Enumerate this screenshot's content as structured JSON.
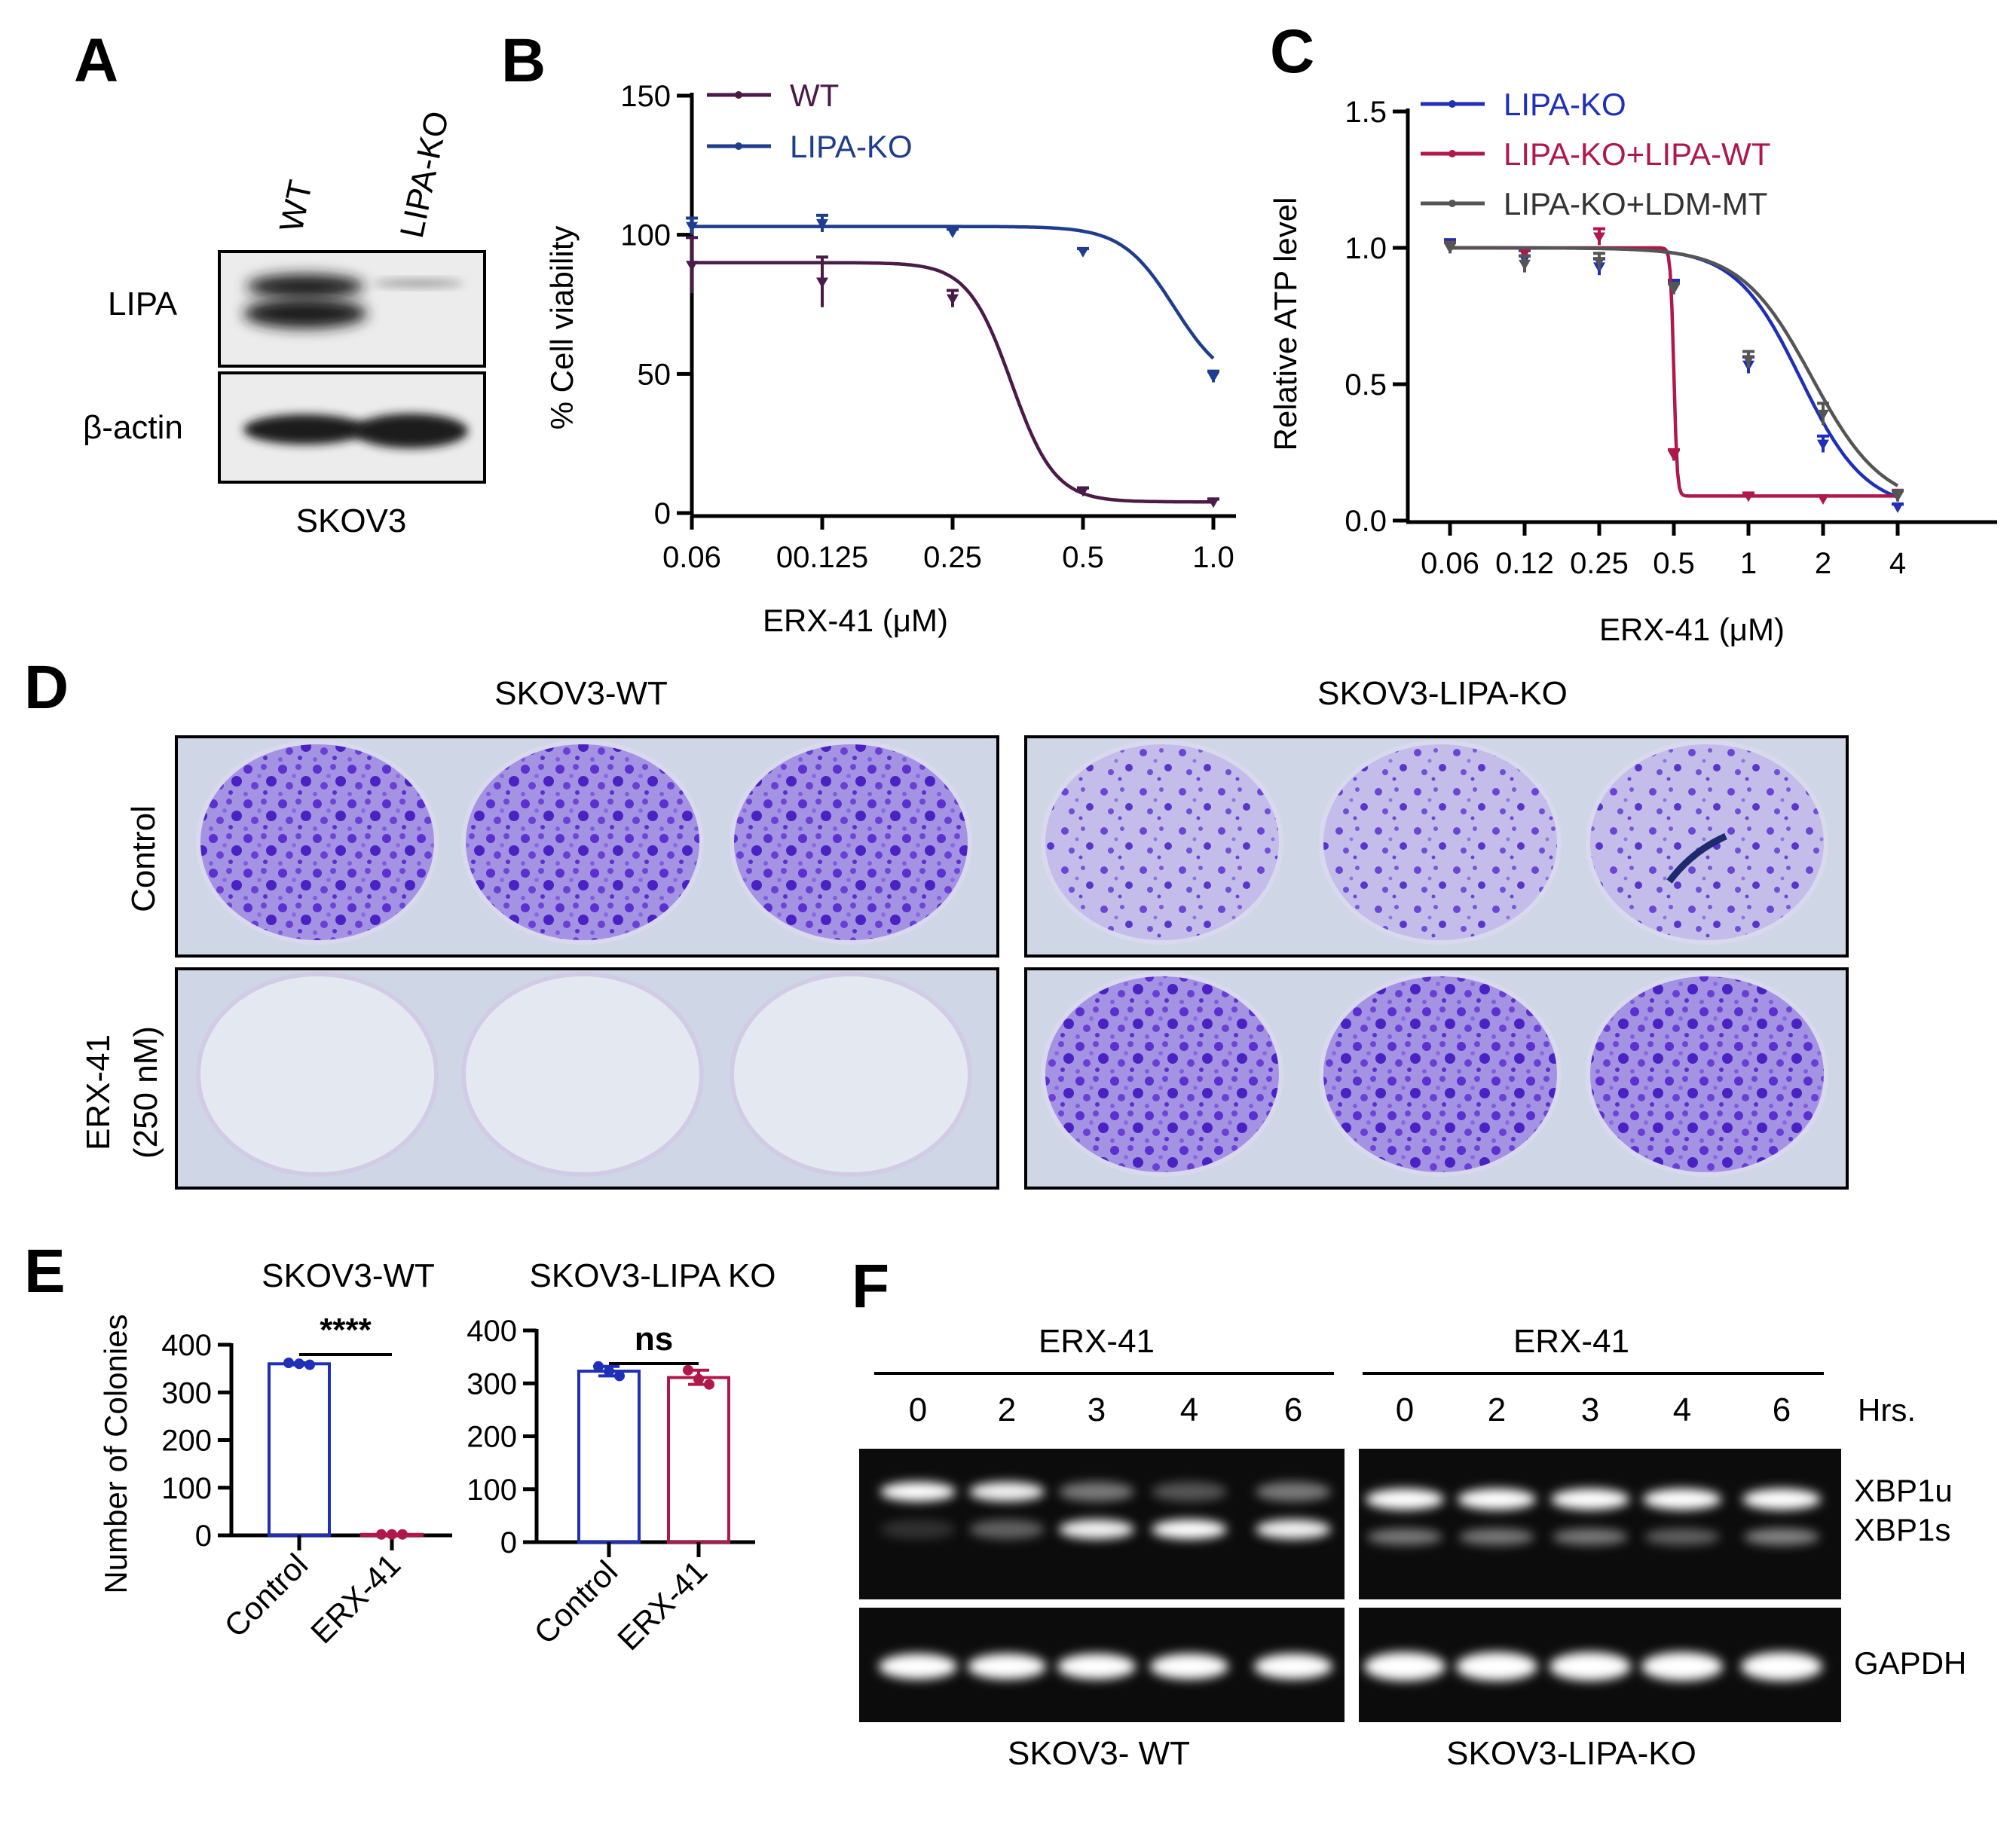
{
  "panels": {
    "A": {
      "label": "A",
      "lanes": [
        "WT",
        "LIPA-KO"
      ],
      "rows": [
        "LIPA",
        "β-actin"
      ],
      "cell_line": "SKOV3"
    },
    "D": {
      "label": "D",
      "columns": [
        "SKOV3-WT",
        "SKOV3-LIPA-KO"
      ],
      "rows": [
        "Control",
        "ERX-41",
        "(250 nM)"
      ]
    },
    "F": {
      "label": "F",
      "group_label_left": "ERX-41",
      "group_label_right": "ERX-41",
      "hrs_label": "Hrs.",
      "times": [
        "0",
        "2",
        "3",
        "4",
        "6"
      ],
      "bands": [
        "XBP1u",
        "XBP1s",
        "GAPDH"
      ],
      "cells": [
        "SKOV3- WT",
        "SKOV3-LIPA-KO"
      ]
    }
  },
  "colors": {
    "wt": "#4a1a48",
    "ko": "#1f3d8f",
    "blue": "#1f2fb8",
    "red": "#b0184a",
    "gray": "#555555",
    "crystal": "#6d3fd6"
  },
  "chart_data": [
    {
      "id": "B",
      "panel_label": "B",
      "type": "line",
      "subtype": "dose-response",
      "xlabel": "ERX-41 (μM)",
      "ylabel": "% Cell viability",
      "ylim": [
        0,
        150
      ],
      "yticks": [
        "0",
        "50",
        "100",
        "150"
      ],
      "x_categories": [
        "0.06",
        "00.125",
        "0.25",
        "0.5",
        "1.0"
      ],
      "series": [
        {
          "name": "WT",
          "color": "#4a1a48",
          "values": [
            89,
            83,
            77,
            8,
            4
          ],
          "errors": [
            10,
            9,
            3,
            1,
            1
          ],
          "fit_top": 90,
          "fit_bottom": 4,
          "fit_ic50_index": 2.45,
          "fit_hill": 6
        },
        {
          "name": "LIPA-KO",
          "color": "#1f3d8f",
          "values": [
            103,
            104,
            101,
            94,
            49
          ],
          "errors": [
            3,
            3,
            1,
            1,
            2
          ],
          "fit_top": 103,
          "fit_bottom": 45,
          "fit_ic50_index": 3.7,
          "fit_hill": 5
        }
      ]
    },
    {
      "id": "C",
      "panel_label": "C",
      "type": "line",
      "subtype": "dose-response",
      "xlabel": "ERX-41 (μM)",
      "ylabel": "Relative ATP level",
      "ylim": [
        0,
        1.5
      ],
      "yticks": [
        "0.0",
        "0.5",
        "1.0",
        "1.5"
      ],
      "x_categories": [
        "0.06",
        "0.12",
        "0.25",
        "0.5",
        "1",
        "2",
        "4"
      ],
      "series": [
        {
          "name": "LIPA-KO",
          "color": "#1f2fb8",
          "values": [
            1.01,
            0.96,
            0.93,
            0.87,
            0.57,
            0.28,
            0.05
          ],
          "errors": [
            0.02,
            0.03,
            0.03,
            0.01,
            0.03,
            0.03,
            0.01
          ],
          "fit_top": 1.0,
          "fit_bottom": 0.04,
          "fit_ic50_index": 4.7,
          "fit_hill": 2.3
        },
        {
          "name": "LIPA-KO+LIPA-WT",
          "color": "#b0184a",
          "values": [
            1.01,
            0.98,
            1.04,
            0.24,
            0.09,
            0.08,
            0.1
          ],
          "errors": [
            0.01,
            0.02,
            0.03,
            0.02,
            0.01,
            0.01,
            0.01
          ],
          "fit_top": 1.0,
          "fit_bottom": 0.09,
          "fit_ic50_index": 3.0,
          "fit_hill": 45
        },
        {
          "name": "LIPA-KO+LDM-MT",
          "color": "#555555",
          "values": [
            1.0,
            0.94,
            0.95,
            0.85,
            0.59,
            0.39,
            0.09
          ],
          "errors": [
            0.02,
            0.03,
            0.03,
            0.02,
            0.03,
            0.04,
            0.02
          ],
          "fit_top": 1.0,
          "fit_bottom": 0.05,
          "fit_ic50_index": 4.85,
          "fit_hill": 2.1
        }
      ]
    },
    {
      "id": "E1",
      "panel_label": "E",
      "type": "bar",
      "title": "SKOV3-WT",
      "ylabel": "Number of Colonies",
      "ylim": [
        0,
        400
      ],
      "yticks": [
        "0",
        "100",
        "200",
        "300",
        "400"
      ],
      "categories": [
        "Control",
        "ERX-41"
      ],
      "values": [
        360,
        2
      ],
      "colors": [
        "#1f2fb8",
        "#b0184a"
      ],
      "points": [
        [
          362,
          360,
          358
        ],
        [
          2,
          2,
          2
        ]
      ],
      "significance": "****"
    },
    {
      "id": "E2",
      "panel_label": "",
      "type": "bar",
      "title": "SKOV3-LIPA KO",
      "ylabel": "",
      "ylim": [
        0,
        400
      ],
      "yticks": [
        "0",
        "100",
        "200",
        "300",
        "400"
      ],
      "categories": [
        "Control",
        "ERX-41"
      ],
      "values": [
        323,
        311
      ],
      "colors": [
        "#1f2fb8",
        "#b0184a"
      ],
      "points": [
        [
          332,
          323,
          314
        ],
        [
          325,
          308,
          298
        ]
      ],
      "significance": "ns"
    }
  ]
}
